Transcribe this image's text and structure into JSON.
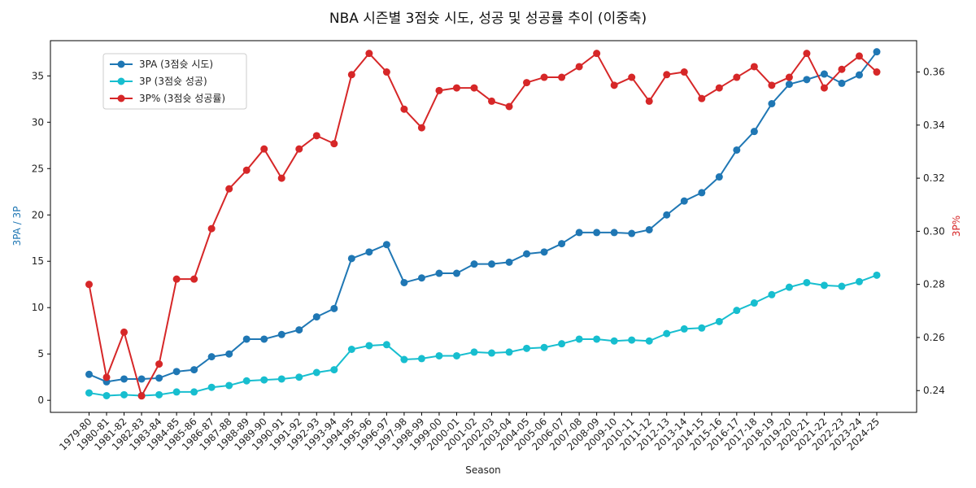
{
  "chart_data": {
    "type": "line",
    "title": "NBA 시즌별 3점슛 시도, 성공 및 성공률 추이 (이중축)",
    "xlabel": "Season",
    "ylabel_left": "3PA / 3P",
    "ylabel_right": "3P%",
    "ylim_left": [
      -1.3,
      38.8
    ],
    "ylim_right": [
      0.2318,
      0.3718
    ],
    "yticks_left": [
      0,
      5,
      10,
      15,
      20,
      25,
      30,
      35
    ],
    "yticks_right": [
      0.24,
      0.26,
      0.28,
      0.3,
      0.32,
      0.34,
      0.36
    ],
    "ytick_labels_right": [
      "0.24",
      "0.26",
      "0.28",
      "0.30",
      "0.32",
      "0.34",
      "0.36"
    ],
    "grid": false,
    "legend_placement": "upper-left",
    "colors": {
      "left_axis": "#1f77b4",
      "right_axis": "#d62728"
    },
    "categories": [
      "1979-80",
      "1980-81",
      "1981-82",
      "1982-83",
      "1983-84",
      "1984-85",
      "1985-86",
      "1986-87",
      "1987-88",
      "1988-89",
      "1989-90",
      "1990-91",
      "1991-92",
      "1992-93",
      "1993-94",
      "1994-95",
      "1995-96",
      "1996-97",
      "1997-98",
      "1998-99",
      "1999-00",
      "2000-01",
      "2001-02",
      "2002-03",
      "2003-04",
      "2004-05",
      "2005-06",
      "2006-07",
      "2007-08",
      "2008-09",
      "2009-10",
      "2010-11",
      "2011-12",
      "2012-13",
      "2013-14",
      "2014-15",
      "2015-16",
      "2016-17",
      "2017-18",
      "2018-19",
      "2019-20",
      "2020-21",
      "2021-22",
      "2022-23",
      "2023-24",
      "2024-25"
    ],
    "series": [
      {
        "name": "3PA (3점슛 시도)",
        "axis": "left",
        "color": "#1f77b4",
        "values": [
          2.8,
          2.0,
          2.3,
          2.3,
          2.4,
          3.1,
          3.3,
          4.7,
          5.0,
          6.6,
          6.6,
          7.1,
          7.6,
          9.0,
          9.9,
          15.3,
          16.0,
          16.8,
          12.7,
          13.2,
          13.7,
          13.7,
          14.7,
          14.7,
          14.9,
          15.8,
          16.0,
          16.9,
          18.1,
          18.1,
          18.1,
          18.0,
          18.4,
          20.0,
          21.5,
          22.4,
          24.1,
          27.0,
          29.0,
          32.0,
          34.1,
          34.6,
          35.2,
          34.2,
          35.1,
          37.6
        ]
      },
      {
        "name": "3P (3점슛 성공)",
        "axis": "left",
        "color": "#17becf",
        "values": [
          0.8,
          0.5,
          0.6,
          0.5,
          0.6,
          0.9,
          0.9,
          1.4,
          1.6,
          2.1,
          2.2,
          2.3,
          2.5,
          3.0,
          3.3,
          5.5,
          5.9,
          6.0,
          4.4,
          4.5,
          4.8,
          4.8,
          5.2,
          5.1,
          5.2,
          5.6,
          5.7,
          6.1,
          6.6,
          6.6,
          6.4,
          6.5,
          6.4,
          7.2,
          7.7,
          7.8,
          8.5,
          9.7,
          10.5,
          11.4,
          12.2,
          12.7,
          12.4,
          12.3,
          12.8,
          13.5
        ]
      },
      {
        "name": "3P% (3점슛 성공률)",
        "axis": "right",
        "color": "#d62728",
        "values": [
          0.28,
          0.245,
          0.262,
          0.238,
          0.25,
          0.282,
          0.282,
          0.301,
          0.316,
          0.323,
          0.331,
          0.32,
          0.331,
          0.336,
          0.333,
          0.359,
          0.367,
          0.36,
          0.346,
          0.339,
          0.353,
          0.354,
          0.354,
          0.349,
          0.347,
          0.356,
          0.358,
          0.358,
          0.362,
          0.367,
          0.355,
          0.358,
          0.349,
          0.359,
          0.36,
          0.35,
          0.354,
          0.358,
          0.362,
          0.355,
          0.358,
          0.367,
          0.354,
          0.361,
          0.366,
          0.36
        ]
      }
    ]
  }
}
